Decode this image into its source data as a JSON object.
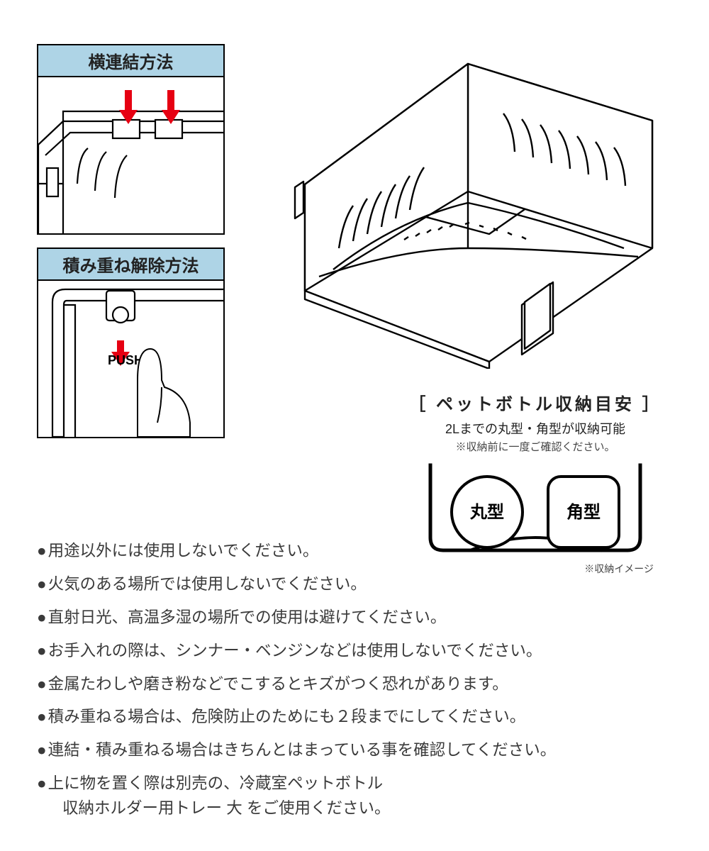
{
  "colors": {
    "header_bg": "#aed4e6",
    "border": "#000000",
    "arrow": "#e60012",
    "text": "#3a3a3a",
    "bg": "#ffffff"
  },
  "panels": {
    "horizontal": {
      "title": "横連結方法"
    },
    "unstack": {
      "title": "積み重ね解除方法",
      "push_label": "PUSH"
    }
  },
  "hero": {
    "desc": "冷蔵室ペットボトル収納ホルダー 線画"
  },
  "capacity": {
    "title": "［ ペットボトル収納目安 ］",
    "subtitle": "2Lまでの丸型・角型が収納可能",
    "note": "※収納前に一度ご確認ください。",
    "shapes": {
      "round": "丸型",
      "square": "角型"
    },
    "image_note": "※収納イメージ",
    "title_fontsize": 24,
    "sub_fontsize": 18
  },
  "warnings": [
    "用途以外には使用しないでください。",
    "火気のある場所では使用しないでください。",
    "直射日光、高温多湿の場所での使用は避けてください。",
    "お手入れの際は、シンナー・ベンジンなどは使用しないでください。",
    "金属たわしや磨き粉などでこするとキズがつく恐れがあります。",
    "積み重ねる場合は、危険防止のためにも２段までにしてください。",
    "連結・積み重ねる場合はきちんとはまっている事を確認してください。",
    "上に物を置く際は別売の、冷蔵室ペットボトル\n収納ホルダー用トレー 大 をご使用ください。"
  ]
}
